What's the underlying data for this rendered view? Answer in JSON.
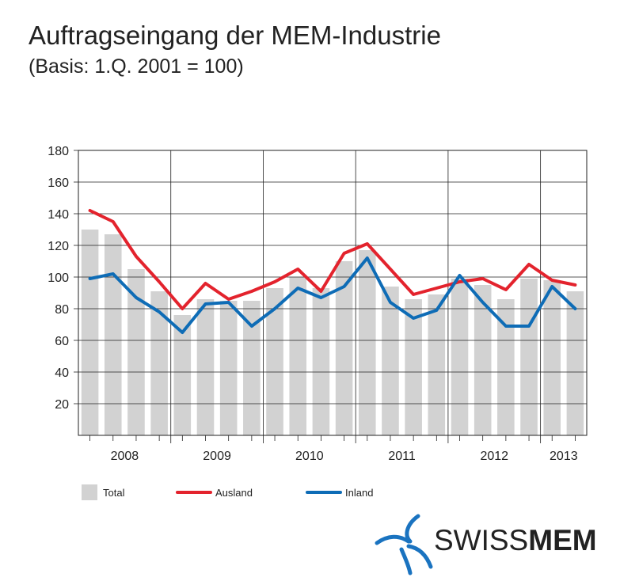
{
  "title": "Auftragseingang der MEM-Industrie",
  "subtitle": "(Basis: 1.Q. 2001 = 100)",
  "logo": {
    "part1": "SWISS",
    "part2": "MEM"
  },
  "colors": {
    "total": "#d2d2d2",
    "ausland": "#e3232d",
    "inland": "#0e6cb6",
    "grid": "#222222"
  },
  "chart_data": {
    "type": "bar",
    "title": "Auftragseingang der MEM-Industrie",
    "subtitle": "(Basis: 1.Q. 2001 = 100)",
    "xlabel": "",
    "ylabel": "",
    "ylim": [
      0,
      180
    ],
    "yticks": [
      20,
      40,
      60,
      80,
      100,
      120,
      140,
      160,
      180
    ],
    "grid": true,
    "legend_position": "bottom",
    "years": [
      "2008",
      "2009",
      "2010",
      "2011",
      "2012",
      "2013"
    ],
    "quarters_per_year": [
      4,
      4,
      4,
      4,
      4,
      2
    ],
    "categories": [
      "2008 Q1",
      "2008 Q2",
      "2008 Q3",
      "2008 Q4",
      "2009 Q1",
      "2009 Q2",
      "2009 Q3",
      "2009 Q4",
      "2010 Q1",
      "2010 Q2",
      "2010 Q3",
      "2010 Q4",
      "2011 Q1",
      "2011 Q2",
      "2011 Q3",
      "2011 Q4",
      "2012 Q1",
      "2012 Q2",
      "2012 Q3",
      "2012 Q4",
      "2013 Q1",
      "2013 Q2"
    ],
    "series": [
      {
        "name": "Total",
        "type": "bar",
        "values": [
          130,
          127,
          105,
          91,
          76,
          86,
          85,
          85,
          93,
          100,
          93,
          110,
          117,
          94,
          86,
          89,
          99,
          95,
          86,
          99,
          98,
          91
        ]
      },
      {
        "name": "Ausland",
        "type": "line",
        "values": [
          142,
          135,
          113,
          97,
          80,
          96,
          86,
          91,
          97,
          105,
          91,
          115,
          121,
          105,
          89,
          93,
          97,
          99,
          92,
          108,
          98,
          95
        ]
      },
      {
        "name": "Inland",
        "type": "line",
        "values": [
          99,
          102,
          87,
          78,
          65,
          83,
          84,
          69,
          80,
          93,
          87,
          94,
          112,
          84,
          74,
          79,
          101,
          84,
          69,
          69,
          94,
          80
        ]
      }
    ]
  }
}
